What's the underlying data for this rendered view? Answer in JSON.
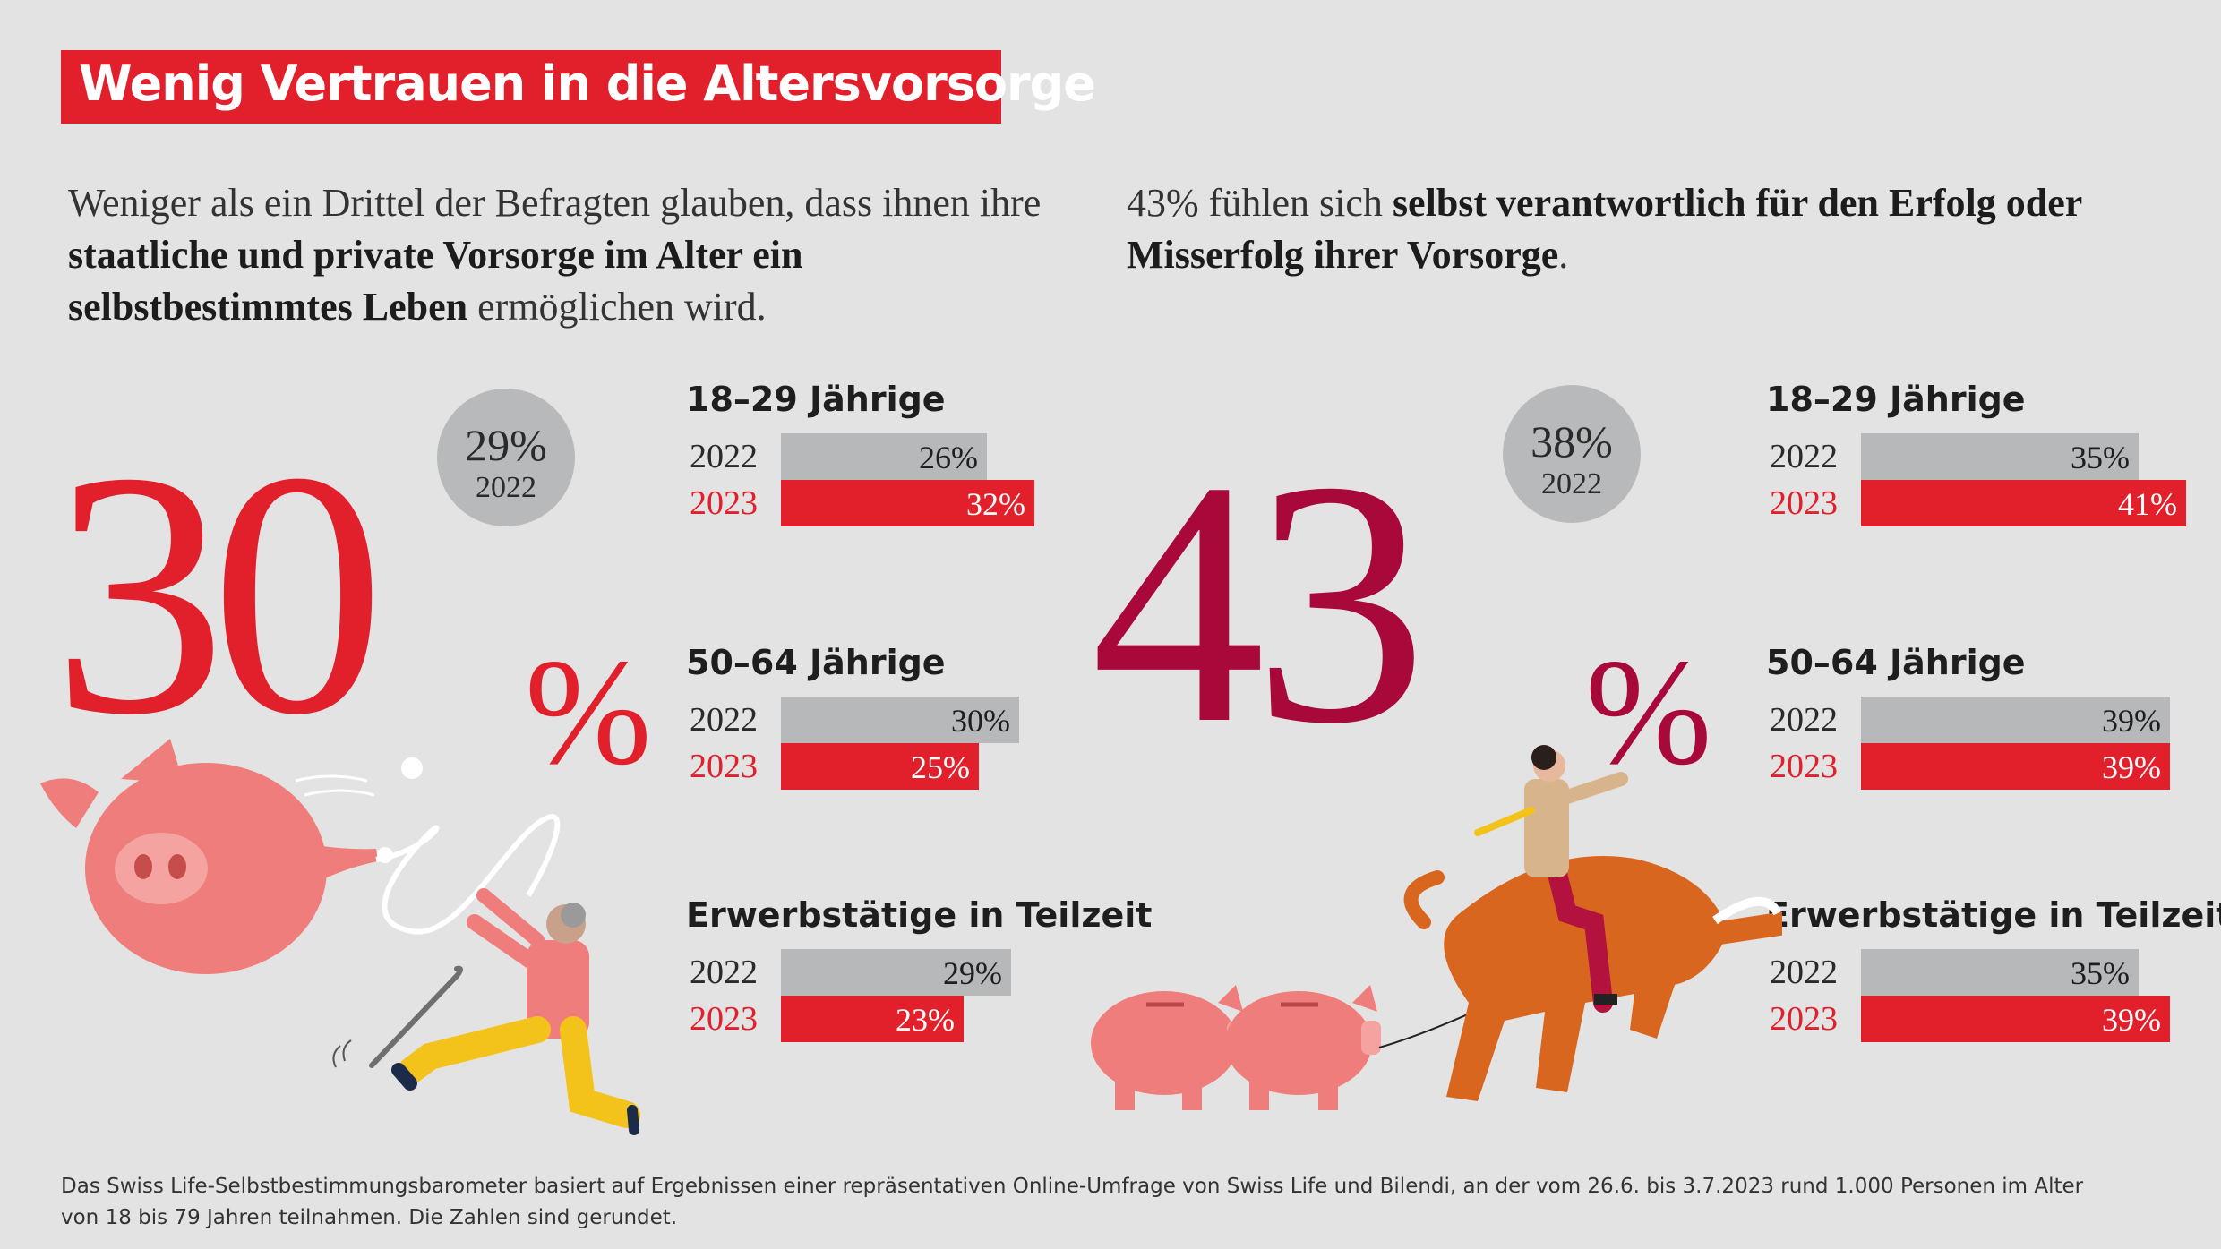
{
  "title": "Wenig Vertrauen in die Altersvorsorge",
  "left_intro": {
    "part1": "Weniger als ein Drittel der Befragten glauben, dass ihnen ihre ",
    "bold": "staatliche und private Vorsorge im Alter ein selbstbestimmtes Leben",
    "part2": " ermöglichen wird."
  },
  "right_intro": {
    "part1": "43% fühlen sich ",
    "bold": "selbst verantwortlich für den Erfolg oder Misserfolg ihrer Vorsorge",
    "part2": "."
  },
  "colors": {
    "red": "#e2202c",
    "dark_red": "#a8093a",
    "grey": "#b7b8ba",
    "background": "#e3e3e3"
  },
  "chart_data": [
    {
      "type": "bar",
      "headline_value": "30",
      "headline_unit": "%",
      "previous_value": "29%",
      "previous_year": "2022",
      "series": [
        {
          "name": "2022",
          "color": "#b7b8ba",
          "values": [
            26,
            30,
            29
          ]
        },
        {
          "name": "2023",
          "color": "#e2202c",
          "values": [
            32,
            25,
            23
          ]
        }
      ],
      "categories": [
        "18–29 Jährige",
        "50–64 Jährige",
        "Erwerbstätige in Teilzeit"
      ],
      "labels": {
        "2022": [
          "26%",
          "30%",
          "29%"
        ],
        "2023": [
          "32%",
          "25%",
          "23%"
        ]
      },
      "unit": "%"
    },
    {
      "type": "bar",
      "headline_value": "43",
      "headline_unit": "%",
      "previous_value": "38%",
      "previous_year": "2022",
      "series": [
        {
          "name": "2022",
          "color": "#b7b8ba",
          "values": [
            35,
            39,
            35
          ]
        },
        {
          "name": "2023",
          "color": "#e2202c",
          "values": [
            41,
            39,
            39
          ]
        }
      ],
      "categories": [
        "18–29 Jährige",
        "50–64 Jährige",
        "Erwerbstätige in Teilzeit"
      ],
      "labels": {
        "2022": [
          "35%",
          "39%",
          "35%"
        ],
        "2023": [
          "41%",
          "39%",
          "39%"
        ]
      },
      "unit": "%"
    }
  ],
  "footnote": "Das Swiss Life-Selbstbestimmungsbarometer basiert auf Ergebnissen einer repräsentativen Online-Umfrage von Swiss Life und Bilendi, an der vom 26.6. bis 3.7.2023 rund 1.000 Personen im Alter von 18 bis 79 Jahren teilnahmen. Die Zahlen sind gerundet.",
  "illustrations": {
    "left": [
      "pig-balloon-icon",
      "running-senior-icon",
      "walking-cane-icon"
    ],
    "right": [
      "piggy-bank-icon",
      "piggy-bank-icon",
      "bull-icon",
      "bull-rider-icon"
    ]
  }
}
